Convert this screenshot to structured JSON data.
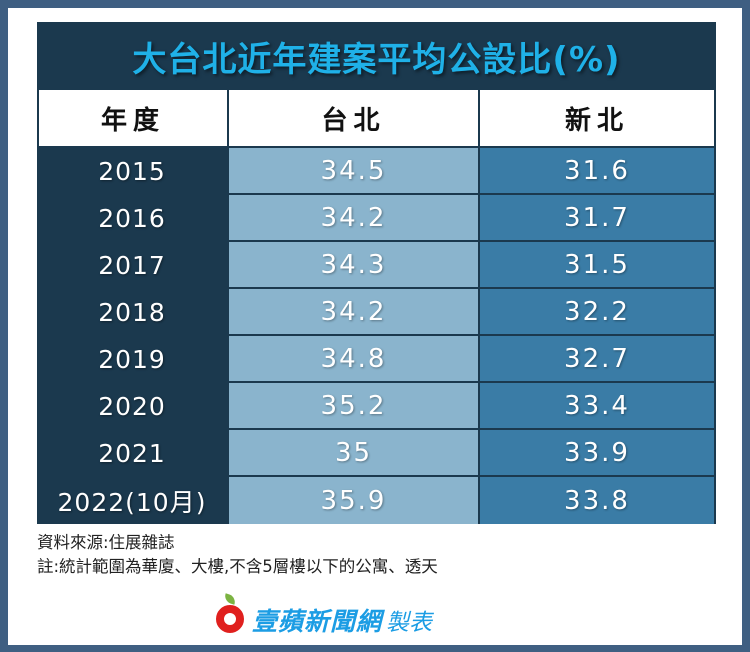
{
  "title": "大台北近年建案平均公設比(%)",
  "headers": {
    "year": "年度",
    "taipei": "台北",
    "new_taipei": "新北"
  },
  "rows": [
    {
      "year": "2015",
      "taipei": "34.5",
      "new_taipei": "31.6"
    },
    {
      "year": "2016",
      "taipei": "34.2",
      "new_taipei": "31.7"
    },
    {
      "year": "2017",
      "taipei": "34.3",
      "new_taipei": "31.5"
    },
    {
      "year": "2018",
      "taipei": "34.2",
      "new_taipei": "32.2"
    },
    {
      "year": "2019",
      "taipei": "34.8",
      "new_taipei": "32.7"
    },
    {
      "year": "2020",
      "taipei": "35.2",
      "new_taipei": "33.4"
    },
    {
      "year": "2021",
      "taipei": "35",
      "new_taipei": "33.9"
    },
    {
      "year": "2022(10月)",
      "taipei": "35.9",
      "new_taipei": "33.8"
    }
  ],
  "notes": {
    "source": "資料來源:住展雜誌",
    "note": "註:統計範圍為華廈、大樓,不含5層樓以下的公寓、透天"
  },
  "logo": {
    "icon": "apple-icon",
    "brand": "壹蘋新聞網",
    "suffix": "製表"
  },
  "colors": {
    "background": "#3f5f82",
    "table_dark": "#1b394e",
    "title": "#1fb1e8",
    "taipei_cell": "#8ab4cd",
    "new_taipei_cell": "#3a7ca6",
    "brand": "#1c9de4",
    "apple_red": "#e0201e"
  },
  "chart_data": {
    "type": "table",
    "title": "大台北近年建案平均公設比(%)",
    "columns": [
      "年度",
      "台北",
      "新北"
    ],
    "categories": [
      "2015",
      "2016",
      "2017",
      "2018",
      "2019",
      "2020",
      "2021",
      "2022(10月)"
    ],
    "series": [
      {
        "name": "台北",
        "values": [
          34.5,
          34.2,
          34.3,
          34.2,
          34.8,
          35.2,
          35,
          35.9
        ]
      },
      {
        "name": "新北",
        "values": [
          31.6,
          31.7,
          31.5,
          32.2,
          32.7,
          33.4,
          33.9,
          33.8
        ]
      }
    ],
    "annotations": [
      "資料來源:住展雜誌",
      "註:統計範圍為華廈、大樓,不含5層樓以下的公寓、透天"
    ]
  }
}
